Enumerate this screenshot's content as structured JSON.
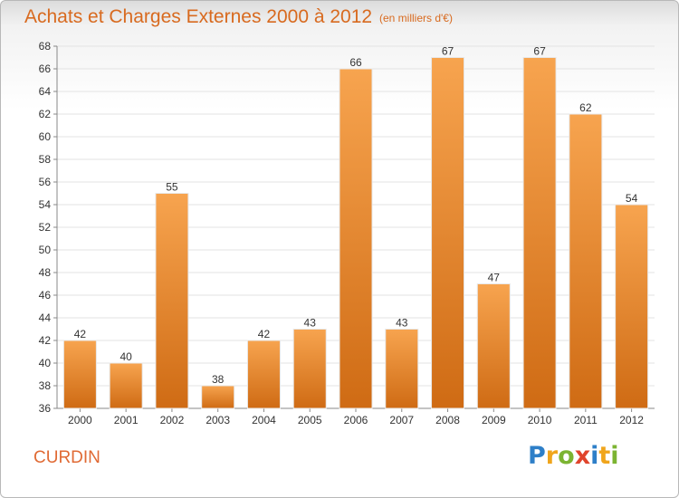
{
  "header": {
    "title": "Achats et Charges Externes 2000 à 2012",
    "subtitle": "(en milliers d'€)"
  },
  "footer": {
    "place": "CURDIN",
    "logo_text": "Proxiti"
  },
  "colors": {
    "bar_top": "#f7a44f",
    "bar_bottom": "#cf6b14",
    "title": "#d86a1f",
    "grid": "#e3e3e3"
  },
  "chart_data": {
    "type": "bar",
    "title": "Achats et Charges Externes 2000 à 2012",
    "subtitle": "(en milliers d'€)",
    "xlabel": "",
    "ylabel": "",
    "categories": [
      "2000",
      "2001",
      "2002",
      "2003",
      "2004",
      "2005",
      "2006",
      "2007",
      "2008",
      "2009",
      "2010",
      "2011",
      "2012"
    ],
    "values": [
      42,
      40,
      55,
      38,
      42,
      43,
      66,
      43,
      67,
      47,
      67,
      62,
      54
    ],
    "ylim": [
      36,
      68
    ],
    "yticks": [
      36,
      38,
      40,
      42,
      44,
      46,
      48,
      50,
      52,
      54,
      56,
      58,
      60,
      62,
      64,
      66,
      68
    ],
    "grid": true,
    "data_labels": true
  }
}
